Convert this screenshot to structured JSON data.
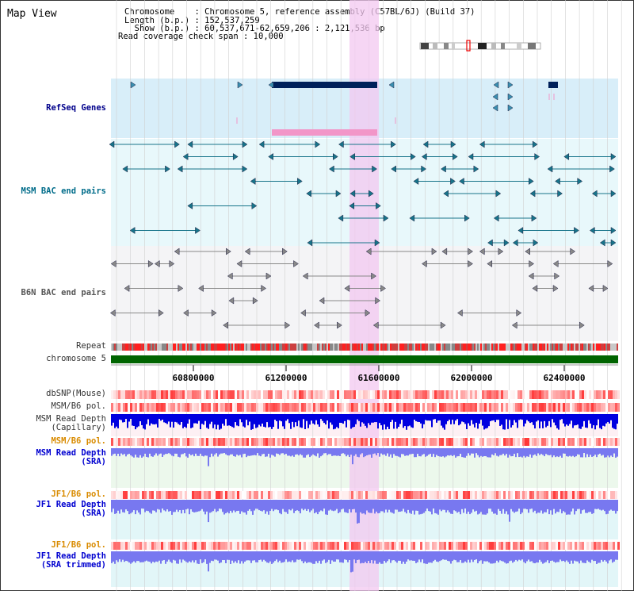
{
  "map_title": "Map View",
  "header": {
    "chromosome_line": "Chromosome    : Chromosome 5, reference assembly (C57BL/6J) (Build 37)",
    "length_line": "Length (b.p.) : 152,537,259",
    "show_line": "  Show (b.p.) : 60,537,671-62,659,206 : 2,121,536 bp",
    "coverage_line": "Read coverage check span : 10,000"
  },
  "tracks": {
    "refseq": "RefSeq Genes",
    "msm_bac": "MSM BAC end pairs",
    "b6n_bac": "B6N BAC end pairs",
    "repeat": "Repeat",
    "chromosome": "chromosome 5",
    "dbsnp": "dbSNP(Mouse)",
    "msm_b6_pol_1": "MSM/B6 pol.",
    "msm_depth_cap": "MSM Read Depth\n(Capillary)",
    "msm_b6_pol_2": "MSM/B6 pol.",
    "msm_depth_sra": "MSM Read Depth\n(SRA)",
    "jf1_b6_pol_1": "JF1/B6 pol.",
    "jf1_depth_sra": "JF1 Read Depth\n(SRA)",
    "jf1_b6_pol_2": "JF1/B6 pol.",
    "jf1_depth_trim": "JF1 Read Depth\n(SRA trimmed)"
  },
  "axis": {
    "ticks": [
      "60800000",
      "61200000",
      "61600000",
      "62000000",
      "62400000"
    ]
  },
  "colors": {
    "refseq_bg": "#d8eef9",
    "msm_bg": "#e8f8fb",
    "b6n_bg": "#f4f4f6",
    "highlight": "#f3c8f0",
    "chromosome": "#006400",
    "msm_depth": "#0000e0",
    "sra_depth": "#7878f0",
    "gene_dark": "#00205a",
    "gene_pink": "#f296c8",
    "polymorphism": "#ff4040",
    "teal": "#17748a",
    "grey": "#888888"
  }
}
